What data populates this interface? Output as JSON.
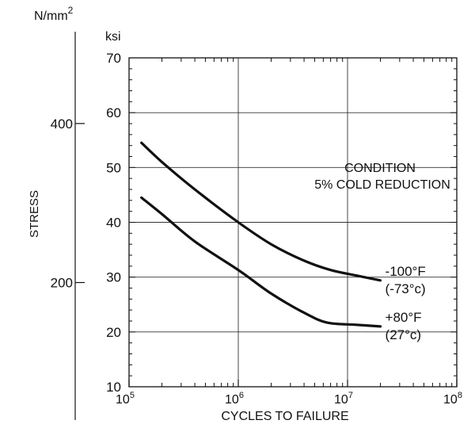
{
  "chart_data": {
    "type": "line",
    "xlabel": "CYCLES TO FAILURE",
    "ylabel": "STRESS",
    "x_scale": "log",
    "xlim": [
      100000,
      100000000
    ],
    "ylim": [
      10,
      70
    ],
    "x_ticks": [
      {
        "value": 100000,
        "base": "10",
        "exp": "5"
      },
      {
        "value": 1000000,
        "base": "10",
        "exp": "6"
      },
      {
        "value": 10000000,
        "base": "10",
        "exp": "7"
      },
      {
        "value": 100000000,
        "base": "10",
        "exp": "8"
      }
    ],
    "y_ticks": [
      10,
      20,
      30,
      40,
      50,
      60,
      70
    ],
    "y_unit": "ksi",
    "secondary_axis": {
      "unit_base": "N/mm",
      "unit_exp": "2",
      "ticks": [
        {
          "label": "400",
          "ksi": 58.02
        },
        {
          "label": "200",
          "ksi": 29.01
        }
      ]
    },
    "grid": true,
    "annotation": [
      "CONDITION",
      "5% COLD REDUCTION"
    ],
    "series": [
      {
        "label_lines": [
          "-100°F",
          "(-73°c)"
        ],
        "points": [
          [
            130000,
            54.5
          ],
          [
            200000,
            51
          ],
          [
            400000,
            46
          ],
          [
            1000000,
            40
          ],
          [
            2000000,
            36
          ],
          [
            4000000,
            33
          ],
          [
            7000000,
            31.3
          ],
          [
            12000000,
            30.3
          ],
          [
            20000000,
            29.4
          ]
        ]
      },
      {
        "label_lines": [
          "+80°F",
          "(27°c)"
        ],
        "points": [
          [
            130000,
            44.5
          ],
          [
            200000,
            41.5
          ],
          [
            400000,
            36.5
          ],
          [
            1000000,
            31.3
          ],
          [
            2000000,
            27
          ],
          [
            4000000,
            23.5
          ],
          [
            6500000,
            21.7
          ],
          [
            12000000,
            21.3
          ],
          [
            20000000,
            21
          ]
        ]
      }
    ]
  }
}
